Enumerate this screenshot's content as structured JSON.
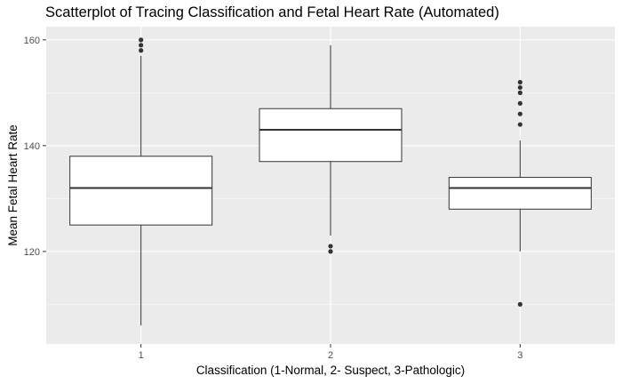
{
  "chart_data": {
    "type": "boxplot",
    "title": "Scatterplot of Tracing Classification and Fetal Heart Rate (Automated)",
    "xlabel": "Classification (1-Normal, 2- Suspect, 3-Pathologic)",
    "ylabel": "Mean Fetal Heart Rate",
    "categories": [
      "1",
      "2",
      "3"
    ],
    "ylim": [
      102.5,
      162.5
    ],
    "yticks": [
      120,
      140,
      160
    ],
    "grid": true,
    "boxes": [
      {
        "category": "1",
        "lower_whisker": 106,
        "q1": 125,
        "median": 132,
        "q3": 138,
        "upper_whisker": 157,
        "outliers": [
          158,
          159,
          160
        ]
      },
      {
        "category": "2",
        "lower_whisker": 123,
        "q1": 137,
        "median": 143,
        "q3": 147,
        "upper_whisker": 159,
        "outliers": [
          120,
          121
        ]
      },
      {
        "category": "3",
        "lower_whisker": 120,
        "q1": 128,
        "median": 132,
        "q3": 134,
        "upper_whisker": 141,
        "outliers": [
          110,
          144,
          146,
          148,
          150,
          151,
          152
        ]
      }
    ],
    "colors": {
      "panel": "#ebebeb",
      "grid": "#ffffff",
      "box_fill": "#ffffff",
      "box_line": "#333333",
      "point": "#333333"
    }
  }
}
